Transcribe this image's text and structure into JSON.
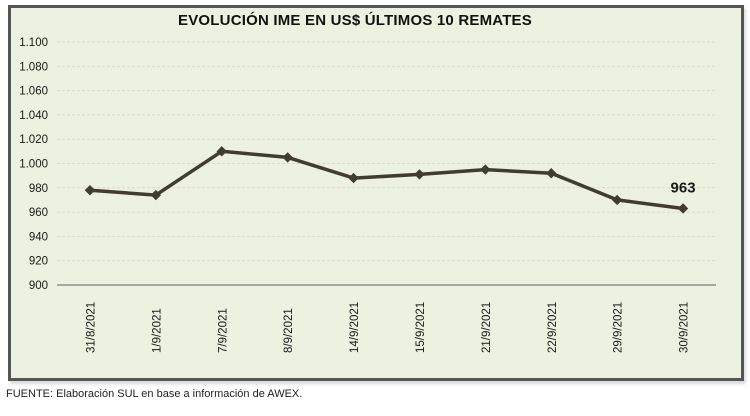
{
  "title": "EVOLUCIÓN IME EN US$ ÚLTIMOS 10 REMATES",
  "footer": "FUENTE: Elaboración SUL en base a información de AWEX.",
  "chart_data": {
    "type": "line",
    "title": "EVOLUCIÓN IME EN US$ ÚLTIMOS 10 REMATES",
    "categories": [
      "31/8/2021",
      "1/9/2021",
      "7/9/2021",
      "8/9/2021",
      "14/9/2021",
      "15/9/2021",
      "21/9/2021",
      "22/9/2021",
      "29/9/2021",
      "30/9/2021"
    ],
    "values": [
      978,
      974,
      1010,
      1005,
      988,
      991,
      995,
      992,
      970,
      963
    ],
    "last_point_label": "963",
    "xlabel": "",
    "ylabel": "",
    "ylim": [
      900,
      1100
    ],
    "ytick_step": 20,
    "ytick_labels": [
      "1.100",
      "1.080",
      "1.060",
      "1.040",
      "1.020",
      "1.000",
      "980",
      "960",
      "940",
      "920",
      "900"
    ],
    "grid": "horizontal-dashed",
    "legend": "none",
    "marker": "diamond"
  },
  "colors": {
    "plot_bg": "#edf1e0",
    "frame_border": "#55565a",
    "line": "#403d2e",
    "marker": "#403d2e",
    "grid": "#d9dcc2",
    "axis": "#8f8f88",
    "text": "#1a1a1a"
  }
}
